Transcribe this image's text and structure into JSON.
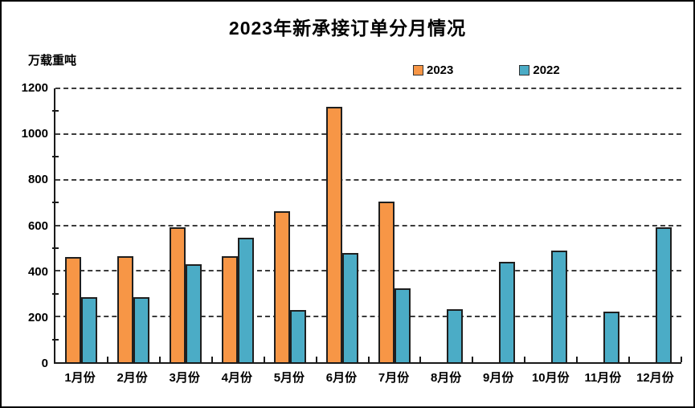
{
  "window": {
    "background_color": "#ffffff",
    "border_color": "#000000"
  },
  "chart_data": {
    "type": "bar",
    "title": "2023年新承接订单分月情况",
    "ylabel_unit": "万载重吨",
    "categories": [
      "1月份",
      "2月份",
      "3月份",
      "4月份",
      "5月份",
      "6月份",
      "7月份",
      "8月份",
      "9月份",
      "10月份",
      "11月份",
      "12月份"
    ],
    "series": [
      {
        "name": "2023",
        "color": "#F79646",
        "values": [
          460,
          465,
          590,
          465,
          660,
          1120,
          705,
          null,
          null,
          null,
          null,
          null
        ]
      },
      {
        "name": "2022",
        "color": "#4BACC6",
        "values": [
          285,
          285,
          430,
          545,
          228,
          480,
          325,
          232,
          440,
          490,
          220,
          590
        ]
      }
    ],
    "ylim": [
      0,
      1200
    ],
    "ytick_step": 200,
    "ytick_labels": [
      "0",
      "200",
      "400",
      "600",
      "800",
      "1000",
      "1200"
    ],
    "grid": "horizontal-dashed",
    "legend_position": "top-center",
    "bar_border_color": "#1f1f1f"
  }
}
